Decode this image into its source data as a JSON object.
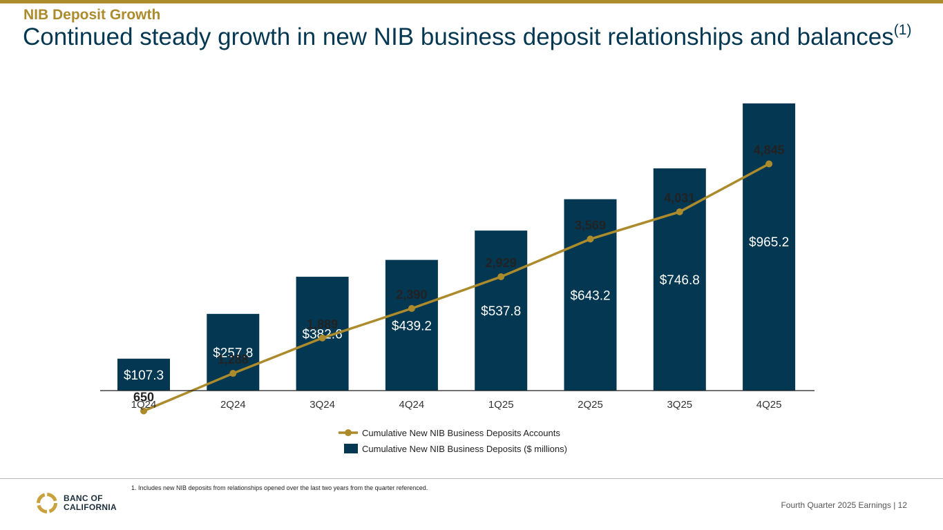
{
  "header": {
    "section_label": "NIB Deposit Growth",
    "title": "Continued steady growth in new NIB business deposit relationships and balances",
    "title_footnote_marker": "(1)"
  },
  "colors": {
    "gold": "#ac8b2c",
    "navy": "#043852",
    "axis": "#1f1f1f",
    "text": "#222222"
  },
  "chart_data": {
    "type": "bar",
    "categories": [
      "1Q24",
      "2Q24",
      "3Q24",
      "4Q24",
      "1Q25",
      "2Q25",
      "3Q25",
      "4Q25"
    ],
    "series": [
      {
        "name": "Cumulative New NIB Business Deposits ($ millions)",
        "type": "bar",
        "values": [
          107.3,
          257.8,
          382.6,
          439.2,
          537.8,
          643.2,
          746.8,
          965.2
        ],
        "labels": [
          "$107.3",
          "$257.8",
          "$382.6",
          "$439.2",
          "$537.8",
          "$643.2",
          "$746.8",
          "$965.2"
        ],
        "color": "#043852"
      },
      {
        "name": "Cumulative New NIB Business Deposits Accounts",
        "type": "line",
        "values": [
          650,
          1288,
          1889,
          2390,
          2929,
          3569,
          4031,
          4845
        ],
        "labels": [
          "650",
          "1,288",
          "1,889",
          "2,390",
          "2,929",
          "3,569",
          "4,031",
          "4,845"
        ],
        "color": "#ac8b2c"
      }
    ],
    "legend": [
      {
        "label": "Cumulative New NIB Business Deposits Accounts",
        "marker": "line"
      },
      {
        "label": "Cumulative New NIB Business Deposits ($ millions)",
        "marker": "bar"
      }
    ],
    "legend_position": "bottom-center",
    "grid": false
  },
  "footnote": "1.  Includes new NIB deposits from relationships opened over the last two years from the quarter referenced.",
  "logo": {
    "line1": "BANC OF",
    "line2": "CALIFORNIA"
  },
  "footer": {
    "text": "Fourth Quarter 2025 Earnings |  12"
  }
}
